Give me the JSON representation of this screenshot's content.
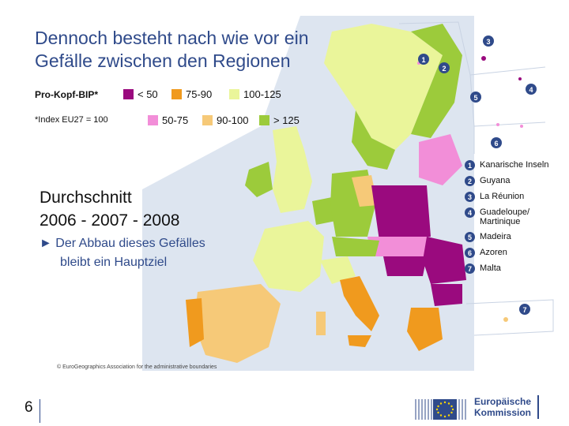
{
  "title": {
    "line1": "Dennoch besteht nach wie vor ein",
    "line2": "Gefälle zwischen den Regionen"
  },
  "legend": {
    "heading": "Pro-Kopf-BIP*",
    "footnote": "*Index EU27 = 100",
    "items": [
      {
        "label": "< 50",
        "color": "#9a0a7e"
      },
      {
        "label": "75-90",
        "color": "#f09a1e"
      },
      {
        "label": "100-125",
        "color": "#eaf59a"
      },
      {
        "label": "50-75",
        "color": "#f28ed8"
      },
      {
        "label": "90-100",
        "color": "#f6c978"
      },
      {
        "label": "> 125",
        "color": "#9ccb3b"
      }
    ]
  },
  "average": {
    "line1": "Durchschnitt",
    "line2": "2006 - 2007 - 2008"
  },
  "bullet": {
    "marker": "►",
    "line1": "Der Abbau dieses Gefälles",
    "line2": "bleibt ein Hauptziel"
  },
  "copyright": "© EuroGeographics Association for the administrative boundaries",
  "page_number": "6",
  "outermost_regions": [
    {
      "num": "1",
      "label": "Kanarische Inseln"
    },
    {
      "num": "2",
      "label": "Guyana"
    },
    {
      "num": "3",
      "label": "La Réunion"
    },
    {
      "num": "4",
      "label": "Guadeloupe/ Martinique"
    },
    {
      "num": "5",
      "label": "Madeira"
    },
    {
      "num": "6",
      "label": "Azoren"
    },
    {
      "num": "7",
      "label": "Malta"
    }
  ],
  "inset_numbers": [
    "1",
    "2",
    "3",
    "4",
    "5",
    "6",
    "7"
  ],
  "logo": {
    "line1": "Europäische",
    "line2": "Kommission"
  }
}
